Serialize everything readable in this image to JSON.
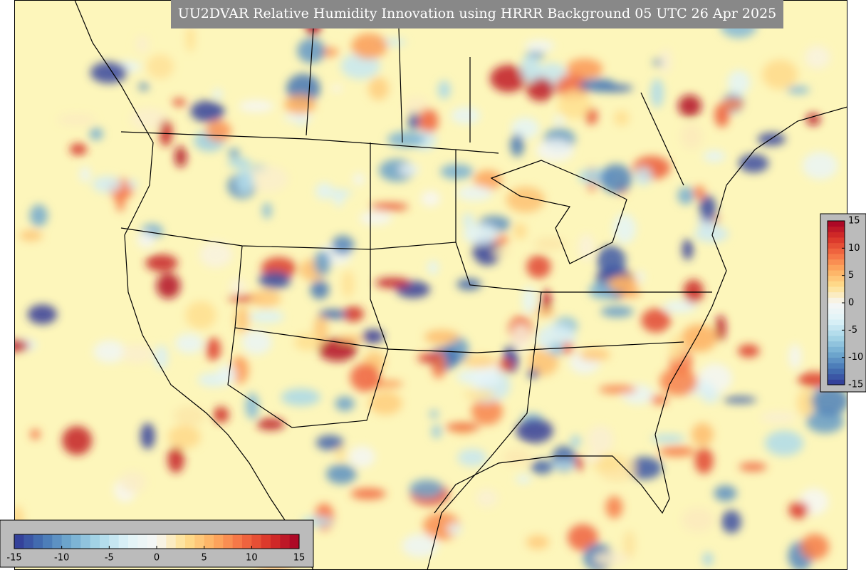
{
  "title": "UU2DVAR Relative Humidity Innovation using HRRR Background 05 UTC 26 Apr 2025",
  "colormap": [
    "#313695",
    "#4575b4",
    "#74add1",
    "#abd9e9",
    "#e0f3f8",
    "#f7f7f4",
    "#fee090",
    "#fdae61",
    "#f46d43",
    "#d73027",
    "#a50026"
  ],
  "colorbars": [
    {
      "orientation": "horizontal",
      "lim": [
        -15,
        15
      ],
      "ticks": [
        -15,
        -10,
        -5,
        0,
        5,
        10,
        15
      ]
    },
    {
      "orientation": "vertical",
      "lim": [
        -15,
        15
      ],
      "ticks": [
        15,
        10,
        5,
        0,
        -5,
        -10,
        -15
      ]
    }
  ]
}
